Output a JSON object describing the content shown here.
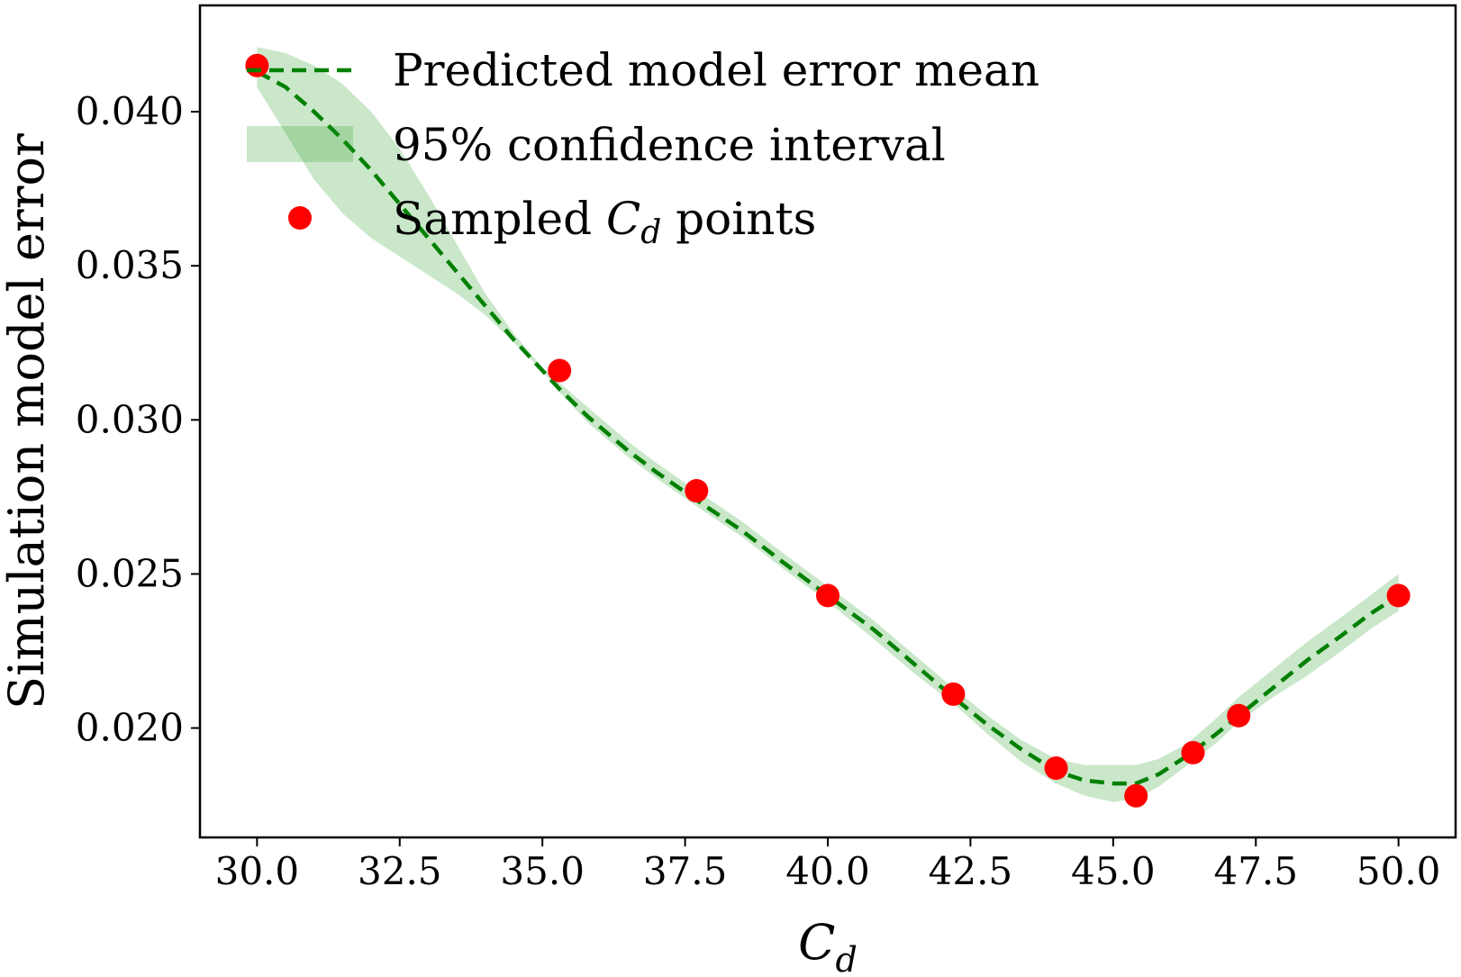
{
  "chart_data": {
    "type": "line",
    "xlabel": "C_d",
    "ylabel": "Simulation model error",
    "xlim": [
      29.0,
      51.0
    ],
    "ylim": [
      0.01645,
      0.04345
    ],
    "xticks": [
      30.0,
      32.5,
      35.0,
      37.5,
      40.0,
      42.5,
      45.0,
      47.5,
      50.0
    ],
    "xtick_labels": [
      "30.0",
      "32.5",
      "35.0",
      "37.5",
      "40.0",
      "42.5",
      "45.0",
      "47.5",
      "50.0"
    ],
    "yticks": [
      0.02,
      0.025,
      0.03,
      0.035,
      0.04
    ],
    "ytick_labels": [
      "0.020",
      "0.025",
      "0.030",
      "0.035",
      "0.040"
    ],
    "grid": false,
    "legend_position": "top-left",
    "series": [
      {
        "name": "Predicted model error mean",
        "kind": "line",
        "style": "dashed",
        "color": "#008000",
        "x": [
          30.0,
          30.5,
          31.0,
          31.5,
          32.0,
          32.5,
          33.0,
          33.5,
          34.0,
          34.5,
          35.0,
          35.3,
          35.8,
          36.5,
          37.0,
          37.7,
          38.5,
          39.2,
          40.0,
          40.8,
          41.5,
          42.2,
          42.8,
          43.4,
          44.0,
          44.5,
          45.0,
          45.4,
          45.8,
          46.3,
          46.8,
          47.2,
          47.8,
          48.4,
          49.0,
          49.5,
          50.0
        ],
        "y": [
          0.0413,
          0.0408,
          0.04,
          0.0391,
          0.0381,
          0.037,
          0.0359,
          0.0348,
          0.0337,
          0.0326,
          0.0316,
          0.031,
          0.0301,
          0.029,
          0.0283,
          0.0274,
          0.0264,
          0.0254,
          0.0243,
          0.0232,
          0.0221,
          0.021,
          0.0201,
          0.0193,
          0.0186,
          0.0183,
          0.0182,
          0.0182,
          0.0185,
          0.0191,
          0.0198,
          0.0204,
          0.0213,
          0.0222,
          0.023,
          0.0237,
          0.0243
        ]
      },
      {
        "name": "95% confidence interval",
        "kind": "band",
        "color": "#2ca02c",
        "x": [
          30.0,
          30.5,
          31.0,
          31.5,
          32.0,
          32.5,
          33.0,
          33.5,
          34.0,
          34.5,
          35.0,
          35.3,
          35.8,
          36.5,
          37.0,
          37.7,
          38.5,
          39.2,
          40.0,
          40.8,
          41.5,
          42.2,
          42.8,
          43.4,
          44.0,
          44.5,
          45.0,
          45.4,
          45.8,
          46.3,
          46.8,
          47.2,
          47.8,
          48.4,
          49.0,
          49.5,
          50.0
        ],
        "lower": [
          0.0408,
          0.0393,
          0.0378,
          0.0367,
          0.0359,
          0.0353,
          0.0347,
          0.0341,
          0.0334,
          0.0325,
          0.0316,
          0.0309,
          0.0299,
          0.0288,
          0.0281,
          0.0272,
          0.0262,
          0.0252,
          0.0241,
          0.0229,
          0.0218,
          0.0208,
          0.0198,
          0.0189,
          0.0182,
          0.0178,
          0.0176,
          0.0177,
          0.0181,
          0.0188,
          0.0195,
          0.0202,
          0.021,
          0.0217,
          0.0225,
          0.0232,
          0.0238
        ],
        "upper": [
          0.0421,
          0.0419,
          0.0415,
          0.0409,
          0.04,
          0.0388,
          0.0373,
          0.0357,
          0.0341,
          0.0328,
          0.0317,
          0.0312,
          0.0304,
          0.0293,
          0.0286,
          0.0277,
          0.0267,
          0.0257,
          0.0246,
          0.0235,
          0.0224,
          0.0213,
          0.0204,
          0.0196,
          0.019,
          0.0188,
          0.0188,
          0.0188,
          0.019,
          0.0195,
          0.0203,
          0.021,
          0.0219,
          0.0228,
          0.0236,
          0.0243,
          0.025
        ]
      },
      {
        "name": "Sampled C_d points",
        "kind": "scatter",
        "color": "#ff0000",
        "x": [
          30.0,
          35.3,
          37.7,
          40.0,
          42.2,
          44.0,
          45.4,
          46.4,
          47.2,
          50.0
        ],
        "y": [
          0.0415,
          0.0316,
          0.0277,
          0.0243,
          0.0211,
          0.0187,
          0.0178,
          0.0192,
          0.0204,
          0.0243
        ]
      }
    ]
  }
}
